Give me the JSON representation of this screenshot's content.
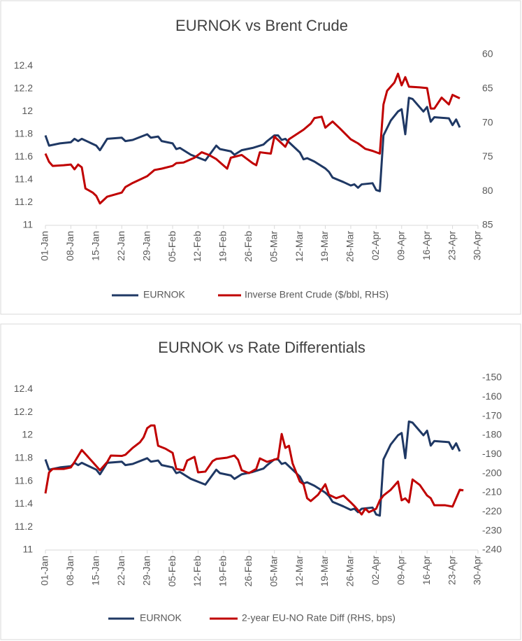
{
  "chart_data": [
    {
      "type": "line",
      "title": "EURNOK vs Brent Crude",
      "legend": "bottom",
      "xlim": [
        "01-Jan",
        "30-Apr"
      ],
      "xticks": [
        "01-Jan",
        "08-Jan",
        "15-Jan",
        "22-Jan",
        "29-Jan",
        "05-Feb",
        "12-Feb",
        "19-Feb",
        "26-Feb",
        "05-Mar",
        "12-Mar",
        "19-Mar",
        "26-Mar",
        "02-Apr",
        "09-Apr",
        "16-Apr",
        "23-Apr",
        "30-Apr"
      ],
      "ylim": [
        11,
        12.5
      ],
      "yticks": [
        11,
        11.2,
        11.4,
        11.6,
        11.8,
        12,
        12.2,
        12.4
      ],
      "y2lim": [
        85,
        60
      ],
      "y2ticks": [
        60,
        65,
        70,
        75,
        80,
        85
      ],
      "series": [
        {
          "name": "EURNOK",
          "color": "#1f3864",
          "x": [
            "01-Jan",
            "02-Jan",
            "05-Jan",
            "08-Jan",
            "09-Jan",
            "10-Jan",
            "11-Jan",
            "15-Jan",
            "16-Jan",
            "18-Jan",
            "22-Jan",
            "23-Jan",
            "25-Jan",
            "29-Jan",
            "30-Jan",
            "01-Feb",
            "02-Feb",
            "05-Feb",
            "06-Feb",
            "07-Feb",
            "10-Feb",
            "14-Feb",
            "17-Feb",
            "18-Feb",
            "21-Feb",
            "22-Feb",
            "24-Feb",
            "27-Feb",
            "02-Mar",
            "03-Mar",
            "05-Mar",
            "06-Mar",
            "07-Mar",
            "08-Mar",
            "12-Mar",
            "13-Mar",
            "14-Mar",
            "16-Mar",
            "19-Mar",
            "20-Mar",
            "21-Mar",
            "24-Mar",
            "26-Mar",
            "27-Mar",
            "28-Mar",
            "29-Mar",
            "01-Apr",
            "02-Apr",
            "03-Apr",
            "04-Apr",
            "06-Apr",
            "08-Apr",
            "09-Apr",
            "10-Apr",
            "11-Apr",
            "12-Apr",
            "15-Apr",
            "16-Apr",
            "17-Apr",
            "18-Apr",
            "22-Apr",
            "23-Apr",
            "24-Apr",
            "25-Apr"
          ],
          "values": [
            11.79,
            11.7,
            11.72,
            11.73,
            11.76,
            11.74,
            11.76,
            11.7,
            11.66,
            11.76,
            11.77,
            11.74,
            11.75,
            11.8,
            11.77,
            11.78,
            11.74,
            11.72,
            11.67,
            11.68,
            11.62,
            11.57,
            11.7,
            11.67,
            11.65,
            11.62,
            11.66,
            11.68,
            11.71,
            11.74,
            11.79,
            11.79,
            11.75,
            11.76,
            11.64,
            11.58,
            11.59,
            11.56,
            11.5,
            11.47,
            11.42,
            11.38,
            11.35,
            11.36,
            11.33,
            11.36,
            11.37,
            11.31,
            11.3,
            11.79,
            11.92,
            12.0,
            12.02,
            11.8,
            12.12,
            12.11,
            12.0,
            12.04,
            11.91,
            11.95,
            11.94,
            11.88,
            11.93,
            11.86
          ]
        },
        {
          "name": "Inverse Brent Crude ($/bbl, RHS)",
          "color": "#c00000",
          "axis": "y2",
          "x": [
            "01-Jan",
            "02-Jan",
            "03-Jan",
            "06-Jan",
            "08-Jan",
            "09-Jan",
            "10-Jan",
            "11-Jan",
            "12-Jan",
            "14-Jan",
            "15-Jan",
            "16-Jan",
            "17-Jan",
            "18-Jan",
            "22-Jan",
            "23-Jan",
            "25-Jan",
            "29-Jan",
            "31-Jan",
            "02-Feb",
            "05-Feb",
            "06-Feb",
            "08-Feb",
            "11-Feb",
            "13-Feb",
            "15-Feb",
            "17-Feb",
            "20-Feb",
            "21-Feb",
            "24-Feb",
            "27-Feb",
            "28-Feb",
            "01-Mar",
            "04-Mar",
            "05-Mar",
            "08-Mar",
            "09-Mar",
            "13-Mar",
            "15-Mar",
            "16-Mar",
            "18-Mar",
            "19-Mar",
            "21-Mar",
            "23-Mar",
            "26-Mar",
            "28-Mar",
            "30-Mar",
            "01-Apr",
            "03-Apr",
            "04-Apr",
            "05-Apr",
            "07-Apr",
            "08-Apr",
            "09-Apr",
            "10-Apr",
            "11-Apr",
            "14-Apr",
            "16-Apr",
            "17-Apr",
            "18-Apr",
            "20-Apr",
            "22-Apr",
            "23-Apr",
            "25-Apr"
          ],
          "values": [
            74.5,
            75.7,
            76.3,
            76.2,
            76.1,
            76.8,
            76.1,
            76.5,
            79.6,
            80.2,
            80.7,
            81.8,
            81.3,
            80.8,
            80.2,
            79.4,
            78.8,
            77.8,
            76.9,
            76.7,
            76.3,
            75.9,
            75.8,
            75.1,
            74.3,
            74.7,
            75.3,
            76.7,
            75.1,
            74.7,
            75.9,
            76.2,
            74.3,
            74.5,
            72,
            73.5,
            72.4,
            71.0,
            70.1,
            69.3,
            69.1,
            70.7,
            69.8,
            70.8,
            72.4,
            73.0,
            73.8,
            74.1,
            74.5,
            67.3,
            65.3,
            64.1,
            62.8,
            64.5,
            63.3,
            64.7,
            64.8,
            64.9,
            67.9,
            67.9,
            66.3,
            67.3,
            65.9,
            66.4
          ]
        }
      ]
    },
    {
      "type": "line",
      "title": "EURNOK vs Rate Differentials",
      "legend": "bottom",
      "xlim": [
        "01-Jan",
        "30-Apr"
      ],
      "xticks": [
        "01-Jan",
        "08-Jan",
        "15-Jan",
        "22-Jan",
        "29-Jan",
        "05-Feb",
        "12-Feb",
        "19-Feb",
        "26-Feb",
        "05-Mar",
        "12-Mar",
        "19-Mar",
        "26-Mar",
        "02-Apr",
        "09-Apr",
        "16-Apr",
        "23-Apr",
        "30-Apr"
      ],
      "ylim": [
        11,
        12.5
      ],
      "yticks": [
        11,
        11.2,
        11.4,
        11.6,
        11.8,
        12,
        12.2,
        12.4
      ],
      "y2lim": [
        -240,
        -150
      ],
      "y2ticks": [
        -240,
        -230,
        -220,
        -210,
        -200,
        -190,
        -180,
        -170,
        -160,
        -150
      ],
      "series": [
        {
          "name": "EURNOK",
          "color": "#1f3864",
          "x": [
            "01-Jan",
            "02-Jan",
            "05-Jan",
            "08-Jan",
            "09-Jan",
            "10-Jan",
            "11-Jan",
            "15-Jan",
            "16-Jan",
            "18-Jan",
            "22-Jan",
            "23-Jan",
            "25-Jan",
            "29-Jan",
            "30-Jan",
            "01-Feb",
            "02-Feb",
            "05-Feb",
            "06-Feb",
            "07-Feb",
            "10-Feb",
            "14-Feb",
            "17-Feb",
            "18-Feb",
            "21-Feb",
            "22-Feb",
            "24-Feb",
            "27-Feb",
            "02-Mar",
            "03-Mar",
            "05-Mar",
            "06-Mar",
            "07-Mar",
            "08-Mar",
            "12-Mar",
            "13-Mar",
            "14-Mar",
            "16-Mar",
            "19-Mar",
            "20-Mar",
            "21-Mar",
            "24-Mar",
            "26-Mar",
            "27-Mar",
            "28-Mar",
            "29-Mar",
            "01-Apr",
            "02-Apr",
            "03-Apr",
            "04-Apr",
            "06-Apr",
            "08-Apr",
            "09-Apr",
            "10-Apr",
            "11-Apr",
            "12-Apr",
            "15-Apr",
            "16-Apr",
            "17-Apr",
            "18-Apr",
            "22-Apr",
            "23-Apr",
            "24-Apr",
            "25-Apr"
          ],
          "values": [
            11.79,
            11.7,
            11.72,
            11.73,
            11.76,
            11.74,
            11.76,
            11.7,
            11.66,
            11.76,
            11.77,
            11.74,
            11.75,
            11.8,
            11.77,
            11.78,
            11.74,
            11.72,
            11.67,
            11.68,
            11.62,
            11.57,
            11.7,
            11.67,
            11.65,
            11.62,
            11.66,
            11.68,
            11.71,
            11.74,
            11.79,
            11.79,
            11.75,
            11.76,
            11.64,
            11.58,
            11.59,
            11.56,
            11.5,
            11.47,
            11.42,
            11.38,
            11.35,
            11.36,
            11.33,
            11.36,
            11.37,
            11.31,
            11.3,
            11.79,
            11.92,
            12.0,
            12.02,
            11.8,
            12.12,
            12.11,
            12.0,
            12.04,
            11.91,
            11.95,
            11.94,
            11.88,
            11.93,
            11.86
          ]
        },
        {
          "name": "2-year EU-NO Rate Diff (RHS, bps)",
          "color": "#c00000",
          "axis": "y2",
          "x": [
            "01-Jan",
            "02-Jan",
            "03-Jan",
            "06-Jan",
            "08-Jan",
            "09-Jan",
            "11-Jan",
            "14-Jan",
            "16-Jan",
            "18-Jan",
            "19-Jan",
            "22-Jan",
            "23-Jan",
            "25-Jan",
            "27-Jan",
            "28-Jan",
            "29-Jan",
            "30-Jan",
            "31-Jan",
            "01-Feb",
            "03-Feb",
            "05-Feb",
            "06-Feb",
            "08-Feb",
            "09-Feb",
            "11-Feb",
            "12-Feb",
            "14-Feb",
            "16-Feb",
            "17-Feb",
            "20-Feb",
            "22-Feb",
            "23-Feb",
            "24-Feb",
            "26-Feb",
            "28-Feb",
            "01-Mar",
            "03-Mar",
            "05-Mar",
            "06-Mar",
            "07-Mar",
            "08-Mar",
            "09-Mar",
            "10-Mar",
            "12-Mar",
            "13-Mar",
            "14-Mar",
            "15-Mar",
            "17-Mar",
            "19-Mar",
            "20-Mar",
            "22-Mar",
            "24-Mar",
            "26-Mar",
            "27-Mar",
            "29-Mar",
            "30-Mar",
            "31-Mar",
            "02-Apr",
            "03-Apr",
            "04-Apr",
            "06-Apr",
            "08-Apr",
            "09-Apr",
            "10-Apr",
            "11-Apr",
            "12-Apr",
            "14-Apr",
            "16-Apr",
            "17-Apr",
            "18-Apr",
            "21-Apr",
            "23-Apr",
            "25-Apr",
            "26-Apr"
          ],
          "values": [
            -210.4,
            -199.4,
            -197.6,
            -197.6,
            -196.8,
            -194,
            -187.7,
            -194,
            -198.3,
            -194,
            -190.6,
            -190.8,
            -190.2,
            -186.6,
            -183.7,
            -181.1,
            -176.3,
            -174.9,
            -174.9,
            -185.5,
            -187,
            -189.2,
            -197.6,
            -198.3,
            -193.2,
            -191.3,
            -199.4,
            -199,
            -193.5,
            -192.4,
            -191.7,
            -190.6,
            -192.8,
            -198.3,
            -199.8,
            -197.6,
            -192.1,
            -193.9,
            -192.8,
            -192.1,
            -179.3,
            -186.6,
            -185.5,
            -194.7,
            -204.2,
            -205.6,
            -212.9,
            -214.4,
            -211.1,
            -205.6,
            -211.1,
            -212.9,
            -211.5,
            -215.1,
            -217,
            -221.4,
            -218.4,
            -220.2,
            -218.4,
            -214,
            -211.5,
            -208.5,
            -204.2,
            -214,
            -213,
            -215.1,
            -203.1,
            -206,
            -211.5,
            -212.9,
            -216.6,
            -216.6,
            -217.3,
            -208.5,
            -208.8
          ]
        }
      ]
    }
  ]
}
